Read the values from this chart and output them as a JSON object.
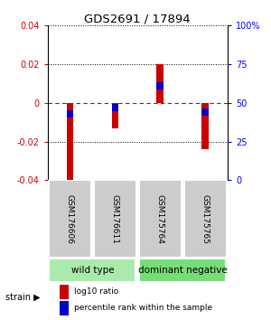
{
  "title": "GDS2691 / 17894",
  "samples": [
    "GSM176606",
    "GSM176611",
    "GSM175764",
    "GSM175765"
  ],
  "log10_ratios": [
    -0.04,
    -0.013,
    0.02,
    -0.024
  ],
  "percentile_ranks": [
    0.43,
    0.47,
    0.61,
    0.44
  ],
  "ylim": [
    -0.04,
    0.04
  ],
  "bar_width": 0.15,
  "red_color": "#CC0000",
  "blue_color": "#0000CC",
  "groups": [
    {
      "label": "wild type",
      "samples": [
        0,
        1
      ],
      "color": "#AAEAAA"
    },
    {
      "label": "dominant negative",
      "samples": [
        2,
        3
      ],
      "color": "#77DD77"
    }
  ],
  "group_label": "strain",
  "yticks_left": [
    -0.04,
    -0.02,
    0,
    0.02,
    0.04
  ],
  "yticks_right": [
    0,
    25,
    50,
    75,
    100
  ],
  "legend_red_label": "log10 ratio",
  "legend_blue_label": "percentile rank within the sample",
  "sample_box_color": "#CCCCCC",
  "bg_color": "#FFFFFF"
}
